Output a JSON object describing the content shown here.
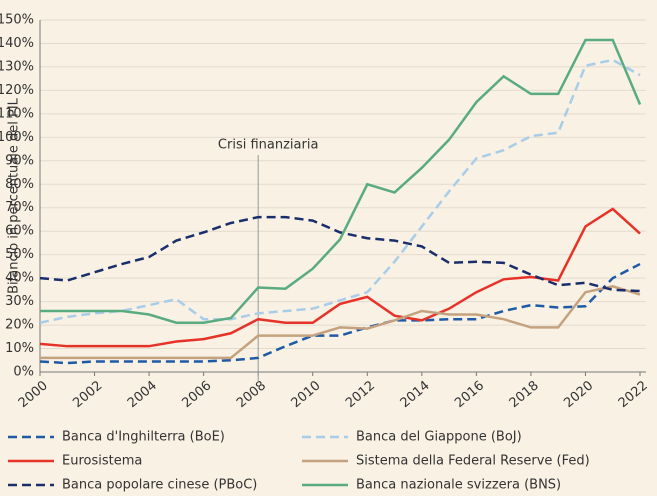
{
  "chart_data": {
    "type": "line",
    "ylabel": "Bilancio in percentuale del PIL",
    "annotation": {
      "text": "Crisi finanziaria",
      "x": 2008
    },
    "x": [
      2000,
      2001,
      2002,
      2003,
      2004,
      2005,
      2006,
      2007,
      2008,
      2009,
      2010,
      2011,
      2012,
      2013,
      2014,
      2015,
      2016,
      2017,
      2018,
      2019,
      2020,
      2021,
      2022
    ],
    "xlim": [
      2000,
      2022
    ],
    "xticks": [
      2000,
      2002,
      2004,
      2006,
      2008,
      2010,
      2012,
      2014,
      2016,
      2018,
      2020,
      2022
    ],
    "ylim": [
      0,
      150
    ],
    "yticks": [
      {
        "value": 0,
        "label": "0%"
      },
      {
        "value": 10,
        "label": "10%"
      },
      {
        "value": 20,
        "label": "20%"
      },
      {
        "value": 30,
        "label": "30%"
      },
      {
        "value": 40,
        "label": "40%"
      },
      {
        "value": 50,
        "label": "50%"
      },
      {
        "value": 60,
        "label": "60%"
      },
      {
        "value": 70,
        "label": "70%"
      },
      {
        "value": 80,
        "label": "80%"
      },
      {
        "value": 90,
        "label": "90%"
      },
      {
        "value": 100,
        "label": "100%"
      },
      {
        "value": 110,
        "label": "110%"
      },
      {
        "value": 120,
        "label": "120%"
      },
      {
        "value": 130,
        "label": "130%"
      },
      {
        "value": 140,
        "label": "140%"
      },
      {
        "value": 150,
        "label": "150%"
      }
    ],
    "grid": true,
    "series": [
      {
        "name": "Banca d'Inghilterra (BoE)",
        "color": "#1f5aa6",
        "dashed": true,
        "values": [
          4.5,
          3.8,
          4.5,
          4.5,
          4.5,
          4.5,
          4.5,
          5,
          6,
          11,
          15.5,
          15.5,
          19,
          22,
          22,
          22.5,
          22.5,
          26,
          28.5,
          27.5,
          28,
          40,
          46
        ]
      },
      {
        "name": "Banca del Giappone (BoJ)",
        "color": "#a9cde8",
        "dashed": true,
        "values": [
          21,
          23.5,
          25,
          26,
          28.5,
          31,
          22.5,
          22.5,
          25,
          26,
          27,
          30.5,
          34,
          47,
          62,
          77,
          91,
          94.5,
          100.5,
          102,
          130.5,
          133,
          126.5
        ]
      },
      {
        "name": "Eurosistema",
        "color": "#e63329",
        "dashed": false,
        "values": [
          12,
          11,
          11,
          11,
          11,
          13,
          14,
          16.5,
          22.5,
          21,
          21,
          29,
          32,
          24,
          22,
          27,
          34,
          39.5,
          40.5,
          39,
          62,
          69.5,
          59
        ]
      },
      {
        "name": "Sistema della Federal Reserve (Fed)",
        "color": "#c4a27f",
        "dashed": false,
        "values": [
          6,
          6,
          6,
          6,
          6,
          6,
          6,
          6,
          15.5,
          15.5,
          15.5,
          19,
          18.5,
          22,
          26,
          24.5,
          24.5,
          22.5,
          19,
          19,
          34,
          36.5,
          33
        ]
      },
      {
        "name": "Banca popolare cinese (PBoC)",
        "color": "#1a2e6b",
        "dashed": true,
        "values": [
          40,
          39,
          42.5,
          46,
          49,
          56,
          59.5,
          63.5,
          66,
          66,
          64.5,
          59.5,
          57,
          56,
          53.5,
          46.5,
          47,
          46.5,
          41.5,
          37,
          38,
          35,
          34.5
        ]
      },
      {
        "name": "Banca nazionale svizzera (BNS)",
        "color": "#5aab7f",
        "dashed": false,
        "values": [
          26,
          26,
          26,
          26,
          24.5,
          21,
          21,
          23,
          36,
          35.5,
          44,
          56.5,
          80,
          76.5,
          87,
          99,
          115,
          126,
          118.5,
          118.5,
          141.5,
          141.5,
          114
        ]
      }
    ]
  }
}
